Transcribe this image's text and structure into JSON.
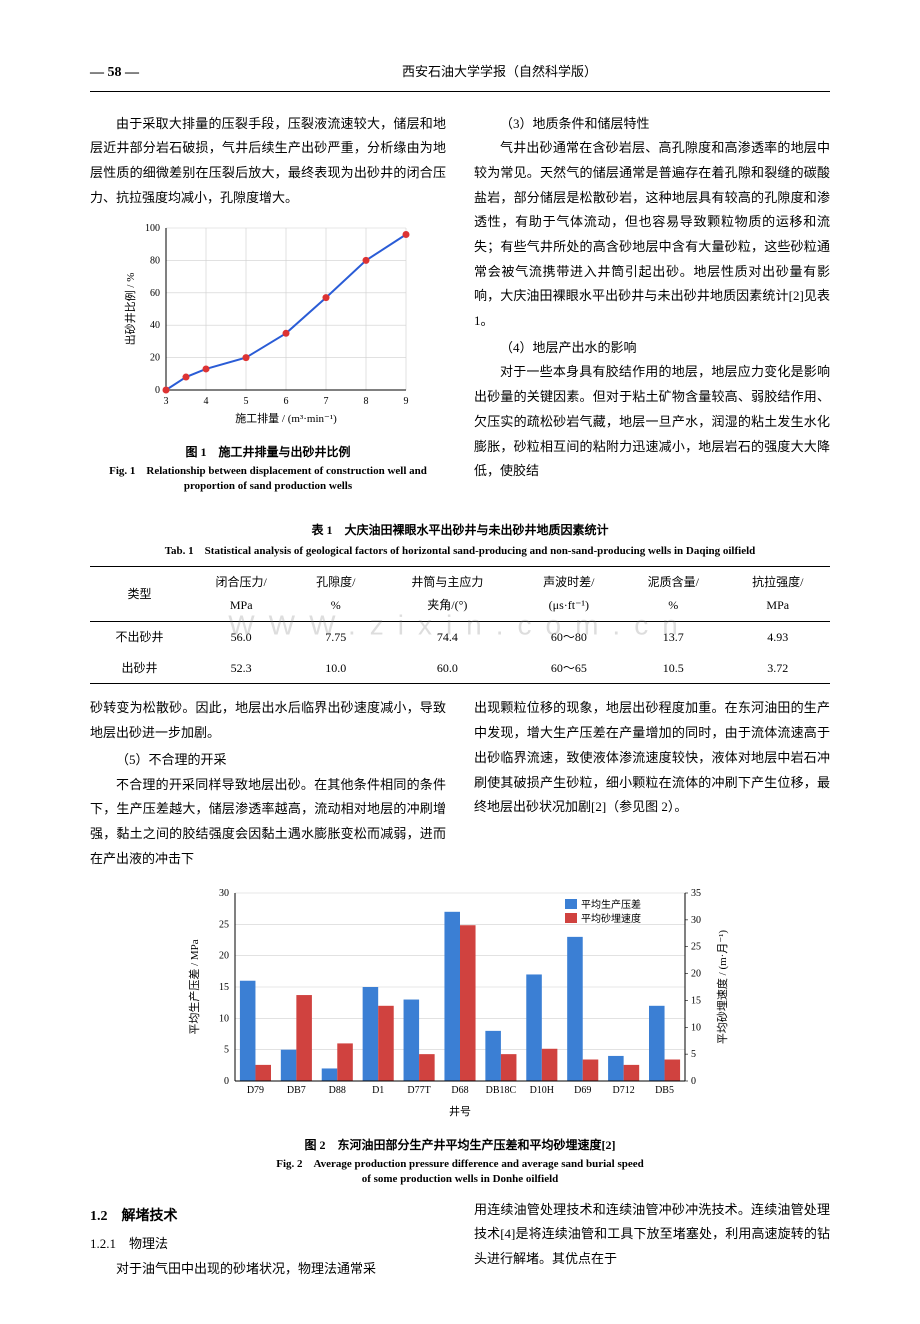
{
  "header": {
    "page_num": "— 58 —",
    "journal": "西安石油大学学报（自然科学版）"
  },
  "col_left_top": [
    "由于采取大排量的压裂手段，压裂液流速较大，储层和地层近井部分岩石破损，气井后续生产出砂严重，分析缘由为地层性质的细微差别在压裂后放大，最终表现为出砂井的闭合压力、抗拉强度均减小，孔隙度增大。"
  ],
  "col_right_top": [
    "（3）地质条件和储层特性",
    "气井出砂通常在含砂岩层、高孔隙度和高渗透率的地层中较为常见。天然气的储层通常是普遍存在着孔隙和裂缝的碳酸盐岩，部分储层是松散砂岩，这种地层具有较高的孔隙度和渗透性，有助于气体流动，但也容易导致颗粒物质的运移和流失；有些气井所处的高含砂地层中含有大量砂粒，这些砂粒通常会被气流携带进入井筒引起出砂。地层性质对出砂量有影响，大庆油田裸眼水平出砂井与未出砂井地质因素统计[2]见表 1。",
    "（4）地层产出水的影响",
    "对于一些本身具有胶结作用的地层，地层应力变化是影响出砂量的关键因素。但对于粘土矿物含量较高、弱胶结作用、欠压实的疏松砂岩气藏，地层一旦产水，润湿的粘土发生水化膨胀，砂粒相互间的粘附力迅速减小，地层岩石的强度大大降低，使胶结"
  ],
  "fig1": {
    "type": "line",
    "title_zh": "图 1　施工井排量与出砂井比例",
    "title_en": "Fig. 1　Relationship between displacement of construction well and proportion of sand production wells",
    "x_label": "施工排量 / (m³·min⁻¹)",
    "y_label": "出砂井比例 / %",
    "x_ticks": [
      3,
      4,
      5,
      6,
      7,
      8,
      9
    ],
    "y_ticks": [
      0,
      20,
      40,
      60,
      80,
      100
    ],
    "xlim": [
      3,
      9
    ],
    "ylim": [
      0,
      100
    ],
    "points": [
      {
        "x": 3,
        "y": 0
      },
      {
        "x": 3.5,
        "y": 8
      },
      {
        "x": 4,
        "y": 13
      },
      {
        "x": 5,
        "y": 20
      },
      {
        "x": 6,
        "y": 35
      },
      {
        "x": 7,
        "y": 57
      },
      {
        "x": 8,
        "y": 80
      },
      {
        "x": 9,
        "y": 96
      }
    ],
    "line_color": "#2a5cd6",
    "marker_color": "#d33",
    "marker_size": 3.5,
    "line_width": 2,
    "grid_color": "#cfcfcf",
    "bg": "#ffffff",
    "axis_fontsize": 10,
    "label_fontsize": 11
  },
  "table1": {
    "title_zh": "表 1　大庆油田裸眼水平出砂井与未出砂井地质因素统计",
    "title_en": "Tab. 1　Statistical analysis of geological factors of horizontal sand-producing and non-sand-producing wells in Daqing oilfield",
    "columns": [
      "类型",
      "闭合压力/\nMPa",
      "孔隙度/\n%",
      "井筒与主应力\n夹角/(°)",
      "声波时差/\n(μs·ft⁻¹)",
      "泥质含量/\n%",
      "抗拉强度/\nMPa"
    ],
    "rows": [
      [
        "不出砂井",
        "56.0",
        "7.75",
        "74.4",
        "60～80",
        "13.7",
        "4.93"
      ],
      [
        "出砂井",
        "52.3",
        "10.0",
        "60.0",
        "60～65",
        "10.5",
        "3.72"
      ]
    ],
    "watermark": "WWW.zixin.com.cn"
  },
  "col_left_mid": [
    "砂转变为松散砂。因此，地层出水后临界出砂速度减小，导致地层出砂进一步加剧。",
    "（5）不合理的开采",
    "不合理的开采同样导致地层出砂。在其他条件相同的条件下，生产压差越大，储层渗透率越高，流动相对地层的冲刷增强，黏土之间的胶结强度会因黏土遇水膨胀变松而减弱，进而在产出液的冲击下"
  ],
  "col_right_mid": [
    "出现颗粒位移的现象，地层出砂程度加重。在东河油田的生产中发现，增大生产压差在产量增加的同时，由于流体流速高于出砂临界流速，致使液体渗流速度较快，液体对地层中岩石冲刷使其破损产生砂粒，细小颗粒在流体的冲刷下产生位移，最终地层出砂状况加剧[2]（参见图 2）。"
  ],
  "fig2": {
    "type": "grouped-bar",
    "title_zh": "图 2　东河油田部分生产井平均生产压差和平均砂埋速度[2]",
    "title_en1": "Fig. 2　Average production pressure difference and average sand burial speed",
    "title_en2": "of some production wells in Donhe oilfield",
    "x_label": "井号",
    "y_left_label": "平均生产压差 / MPa",
    "y_right_label": "平均砂埋速度 / (m·月⁻¹)",
    "categories": [
      "D79",
      "DB7",
      "D88",
      "D1",
      "D77T",
      "D68",
      "DB18C",
      "D10H",
      "D69",
      "D712",
      "DB5"
    ],
    "series": [
      {
        "name": "平均生产压差",
        "color": "#3b7fd4",
        "values": [
          16,
          5,
          2,
          15,
          13,
          27,
          8,
          17,
          23,
          4,
          12
        ]
      },
      {
        "name": "平均砂埋速度",
        "color": "#d0423f",
        "values": [
          3,
          16,
          7,
          14,
          5,
          29,
          5,
          6,
          4,
          3,
          4
        ]
      }
    ],
    "y_left_ticks": [
      0,
      5,
      10,
      15,
      20,
      25,
      30
    ],
    "y_right_ticks": [
      0,
      5,
      10,
      15,
      20,
      25,
      30,
      35
    ],
    "ylim_left": [
      0,
      30
    ],
    "ylim_right": [
      0,
      35
    ],
    "bar_width": 0.38,
    "grid_color": "#d0d0d0",
    "bg": "#ffffff",
    "axis_fontsize": 10,
    "legend_pos": "top-right"
  },
  "sec12_heading": "1.2　解堵技术",
  "sec121_heading": "1.2.1　物理法",
  "col_left_bot": [
    "对于油气田中出现的砂堵状况，物理法通常采"
  ],
  "col_right_bot": [
    "用连续油管处理技术和连续油管冲砂冲洗技术。连续油管处理技术[4]是将连续油管和工具下放至堵塞处，利用高速旋转的钻头进行解堵。其优点在于"
  ]
}
